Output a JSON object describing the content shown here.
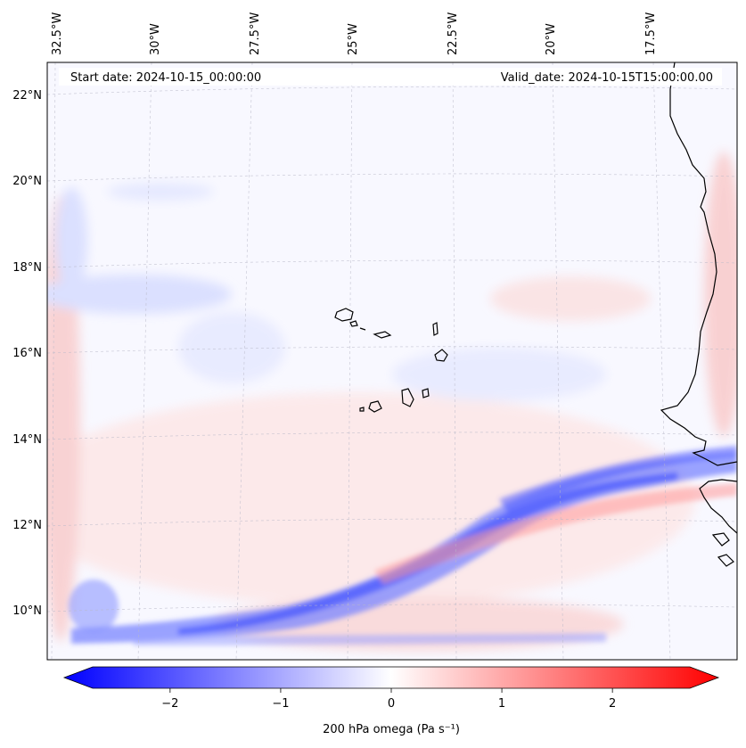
{
  "header": {
    "start_date": "Start date: 2024-10-15_00:00:00",
    "valid_date": "Valid_date: 2024-10-15T15:00:00.00"
  },
  "axes": {
    "lon_labels": [
      "32.5°W",
      "30°W",
      "27.5°W",
      "25°W",
      "22.5°W",
      "20°W",
      "17.5°W"
    ],
    "lat_labels": [
      "22°N",
      "20°N",
      "18°N",
      "16°N",
      "14°N",
      "12°N",
      "10°N"
    ]
  },
  "map": {
    "lon_range": [
      -32.6,
      -15.6
    ],
    "lat_range": [
      8.9,
      22.7
    ],
    "projection_note": "gridlines dashed light gray"
  },
  "colorbar": {
    "label": "200 hPa omega (Pa s⁻¹)",
    "ticks": [
      "−2",
      "−1",
      "0",
      "1",
      "2"
    ],
    "tick_values": [
      -2,
      -1,
      0,
      1,
      2
    ],
    "vmin": -2.7,
    "vmax": 2.7,
    "min_color": "#0000ff",
    "mid_color": "#ffffff",
    "max_color": "#ff0000"
  },
  "colors": {
    "background_field": "#f8f8ff",
    "coast": "#000000",
    "gridline": "#b8b8c8"
  }
}
